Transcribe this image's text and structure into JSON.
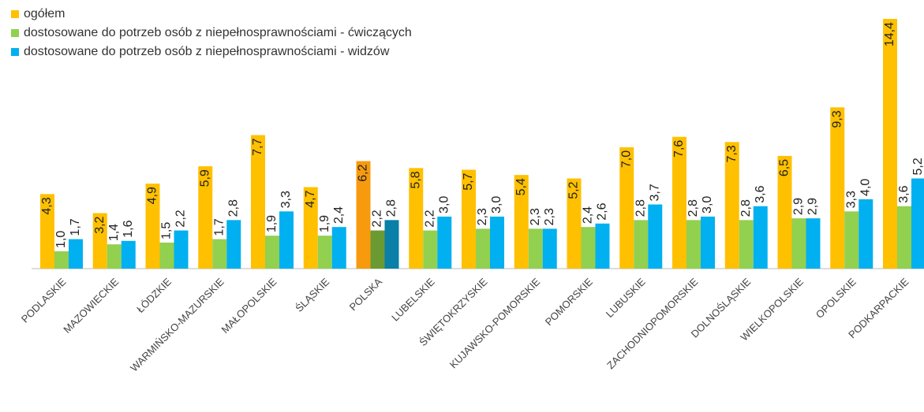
{
  "chart_data": {
    "type": "bar",
    "categories": [
      "PODLASKIE",
      "MAZOWIECKIE",
      "ŁÓDZKIE",
      "WARMIŃSKO-MAZURSKIE",
      "MAŁOPOLSKIE",
      "ŚLĄSKIE",
      "POLSKA",
      "LUBELSKIE",
      "ŚWIĘTOKRZYSKIE",
      "KUJAWSKO-POMORSKIE",
      "POMORSKIE",
      "LUBUSKIE",
      "ZACHODNIOPOMORSKIE",
      "DOLNOŚLĄSKIE",
      "WIELKOPOLSKIE",
      "OPOLSKIE",
      "PODKARPACKIE"
    ],
    "series": [
      {
        "name": "ogółem",
        "color": "#ffc000",
        "colors": [
          "#ffc000",
          "#ffc000",
          "#ffc000",
          "#ffc000",
          "#ffc000",
          "#ffc000",
          "#f79a0e",
          "#ffc000",
          "#ffc000",
          "#ffc000",
          "#ffc000",
          "#ffc000",
          "#ffc000",
          "#ffc000",
          "#ffc000",
          "#ffc000",
          "#ffc000"
        ],
        "values": [
          4.3,
          3.2,
          4.9,
          5.9,
          7.7,
          4.7,
          6.2,
          5.8,
          5.7,
          5.4,
          5.2,
          7.0,
          7.6,
          7.3,
          6.5,
          9.3,
          14.4
        ],
        "value_labels": [
          "4,3",
          "3,2",
          "4,9",
          "5,9",
          "7,7",
          "4,7",
          "6,2",
          "5,8",
          "5,7",
          "5,4",
          "5,2",
          "7,0",
          "7,6",
          "7,3",
          "6,5",
          "9,3",
          "14,4"
        ]
      },
      {
        "name": "dostosowane do potrzeb osób z niepełnosprawnościami -  ćwiczących",
        "color": "#92d050",
        "colors": [
          "#92d050",
          "#92d050",
          "#92d050",
          "#92d050",
          "#92d050",
          "#92d050",
          "#6b9a32",
          "#92d050",
          "#92d050",
          "#92d050",
          "#92d050",
          "#92d050",
          "#92d050",
          "#92d050",
          "#92d050",
          "#92d050",
          "#92d050"
        ],
        "values": [
          1.0,
          1.4,
          1.5,
          1.7,
          1.9,
          1.9,
          2.2,
          2.2,
          2.3,
          2.3,
          2.4,
          2.8,
          2.8,
          2.8,
          2.9,
          3.3,
          3.6
        ],
        "value_labels": [
          "1,0",
          "1,4",
          "1,5",
          "1,7",
          "1,9",
          "1,9",
          "2,2",
          "2,2",
          "2,3",
          "2,3",
          "2,4",
          "2,8",
          "2,8",
          "2,8",
          "2,9",
          "3,3",
          "3,6"
        ]
      },
      {
        "name": "dostosowane do potrzeb osób z niepełnosprawnościami -  widzów",
        "color": "#00b0f0",
        "colors": [
          "#00b0f0",
          "#00b0f0",
          "#00b0f0",
          "#00b0f0",
          "#00b0f0",
          "#00b0f0",
          "#0a7fa8",
          "#00b0f0",
          "#00b0f0",
          "#00b0f0",
          "#00b0f0",
          "#00b0f0",
          "#00b0f0",
          "#00b0f0",
          "#00b0f0",
          "#00b0f0",
          "#00b0f0"
        ],
        "values": [
          1.7,
          1.6,
          2.2,
          2.8,
          3.3,
          2.4,
          2.8,
          3.0,
          3.0,
          2.3,
          2.6,
          3.7,
          3.0,
          3.6,
          2.9,
          4.0,
          5.2
        ],
        "value_labels": [
          "1,7",
          "1,6",
          "2,2",
          "2,8",
          "3,3",
          "2,4",
          "2,8",
          "3,0",
          "3,0",
          "2,3",
          "2,6",
          "3,7",
          "3,0",
          "3,6",
          "2,9",
          "4,0",
          "5,2"
        ]
      }
    ],
    "ylim": [
      0,
      14.4
    ]
  }
}
